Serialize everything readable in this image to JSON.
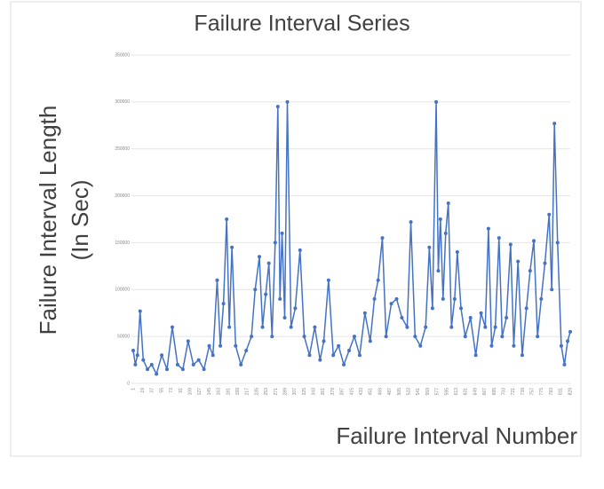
{
  "chart_data": {
    "type": "line",
    "title": "Failure Interval Series",
    "y_label": [
      "Failure Interval Length",
      "(In Sec)"
    ],
    "x_label": "Failure Interval Number",
    "color": "#4472c4",
    "grid": true,
    "xlim": [
      1,
      829
    ],
    "xticks": [
      1,
      19,
      37,
      55,
      73,
      91,
      109,
      127,
      145,
      163,
      181,
      199,
      217,
      235,
      253,
      271,
      289,
      307,
      325,
      343,
      361,
      379,
      397,
      415,
      433,
      451,
      469,
      487,
      505,
      523,
      541,
      559,
      577,
      595,
      613,
      631,
      649,
      667,
      685,
      703,
      721,
      739,
      757,
      775,
      793,
      811,
      829
    ],
    "ylim": [
      0,
      350000
    ],
    "yticks": [
      0,
      50000,
      100000,
      150000,
      200000,
      250000,
      300000,
      350000
    ],
    "x": [
      1,
      5,
      9,
      14,
      20,
      28,
      36,
      45,
      55,
      65,
      75,
      85,
      95,
      105,
      115,
      125,
      135,
      145,
      152,
      160,
      166,
      172,
      178,
      183,
      188,
      195,
      205,
      215,
      225,
      232,
      240,
      246,
      252,
      258,
      264,
      270,
      275,
      279,
      283,
      288,
      293,
      300,
      308,
      317,
      325,
      335,
      345,
      355,
      362,
      371,
      380,
      390,
      400,
      410,
      420,
      430,
      440,
      450,
      458,
      465,
      473,
      480,
      490,
      500,
      510,
      520,
      527,
      535,
      545,
      555,
      562,
      568,
      575,
      579,
      583,
      588,
      593,
      598,
      604,
      610,
      615,
      622,
      630,
      640,
      650,
      660,
      668,
      674,
      680,
      687,
      694,
      700,
      708,
      716,
      722,
      730,
      738,
      746,
      753,
      760,
      767,
      774,
      781,
      789,
      794,
      799,
      805,
      812,
      818,
      824,
      829
    ],
    "values": [
      35000,
      20000,
      30000,
      77000,
      25000,
      15000,
      20000,
      10000,
      30000,
      15000,
      60000,
      20000,
      15000,
      45000,
      20000,
      25000,
      15000,
      40000,
      30000,
      110000,
      40000,
      85000,
      175000,
      60000,
      145000,
      40000,
      20000,
      35000,
      50000,
      100000,
      135000,
      60000,
      95000,
      128000,
      50000,
      150000,
      295000,
      90000,
      160000,
      70000,
      300000,
      60000,
      80000,
      142000,
      50000,
      30000,
      60000,
      25000,
      45000,
      110000,
      30000,
      40000,
      20000,
      35000,
      50000,
      30000,
      75000,
      45000,
      90000,
      110000,
      155000,
      50000,
      85000,
      90000,
      70000,
      60000,
      172000,
      50000,
      40000,
      60000,
      145000,
      80000,
      300000,
      120000,
      175000,
      90000,
      160000,
      192000,
      60000,
      90000,
      140000,
      80000,
      50000,
      70000,
      30000,
      75000,
      60000,
      165000,
      40000,
      60000,
      155000,
      50000,
      70000,
      148000,
      40000,
      130000,
      30000,
      80000,
      120000,
      152000,
      50000,
      90000,
      128000,
      180000,
      100000,
      277000,
      150000,
      40000,
      20000,
      45000,
      55000
    ]
  }
}
